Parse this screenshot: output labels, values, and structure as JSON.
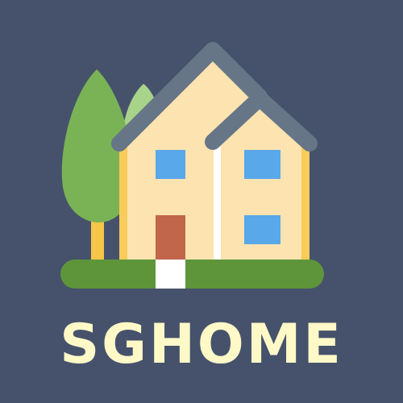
{
  "brand": {
    "name": "SGHOME"
  },
  "logo": {
    "icon": "house-with-trees-icon"
  },
  "colors": {
    "background": "#46526b",
    "wordmark": "#fff9c8",
    "tree_dark": "#7ab356",
    "tree_light": "#a8d38a",
    "trunk": "#f5c648",
    "house_wall": "#fde3b0",
    "house_trim": "#f7cc5a",
    "roof": "#667686",
    "window": "#58a8ea",
    "door": "#c1654b",
    "lawn": "#5e953a",
    "path": "#ffffff"
  }
}
